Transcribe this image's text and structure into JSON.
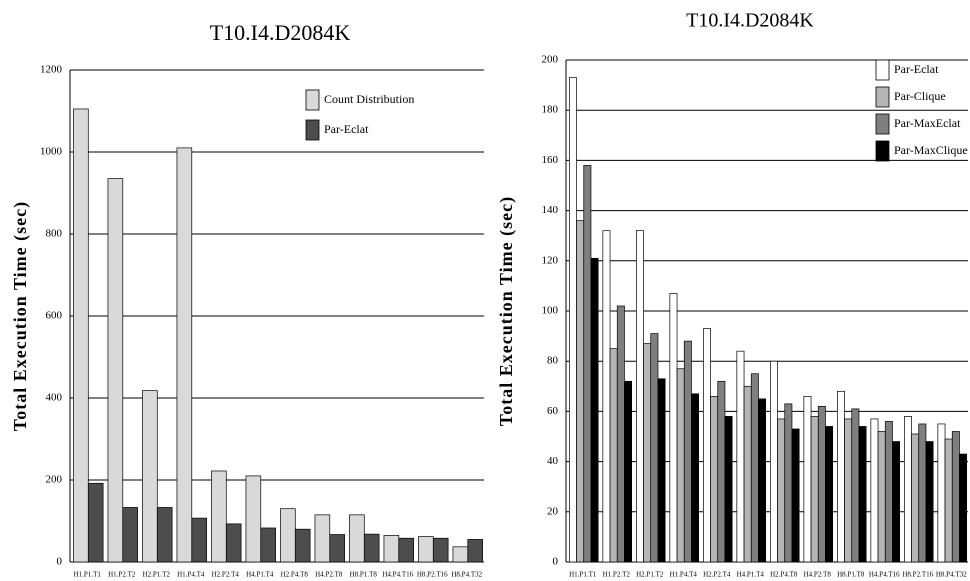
{
  "chart_data": [
    {
      "type": "bar",
      "title": "T10.I4.D2084K",
      "y_label": "Total Execution Time (sec)",
      "categories": [
        "H1.P1.T1",
        "H1.P2.T2",
        "H2.P1.T2",
        "H1.P4.T4",
        "H2.P2.T4",
        "H4.P1.T4",
        "H2.P4.T8",
        "H4.P2.T8",
        "H8.P1.T8",
        "H4.P4.T16",
        "H8.P2.T16",
        "H8.P4.T32"
      ],
      "series": [
        {
          "name": "Count Distribution",
          "color": "#d9d9d9",
          "values": [
            1105,
            935,
            418,
            1010,
            222,
            210,
            130,
            115,
            115,
            65,
            62,
            37
          ]
        },
        {
          "name": "Par-Eclat",
          "color": "#4d4d4d",
          "values": [
            192,
            133,
            133,
            107,
            93,
            83,
            80,
            67,
            68,
            58,
            58,
            55
          ]
        }
      ],
      "ylim": [
        0,
        1200
      ],
      "yticks": [
        0,
        200,
        400,
        600,
        800,
        1000,
        1200
      ],
      "grid": true
    },
    {
      "type": "bar",
      "title": "T10.I4.D2084K",
      "y_label": "Total Execution Time (sec)",
      "categories": [
        "H1.P1.T1",
        "H1.P2.T2",
        "H2.P1.T2",
        "H1.P4.T4",
        "H2.P2.T4",
        "H4.P1.T4",
        "H2.P4.T8",
        "H4.P2.T8",
        "H8.P1.T8",
        "H4.P4.T16",
        "H8.P2.T16",
        "H8.P4.T32"
      ],
      "series": [
        {
          "name": "Par-Eclat",
          "color": "#ffffff",
          "values": [
            193,
            132,
            132,
            107,
            93,
            84,
            80,
            66,
            68,
            57,
            58,
            55
          ]
        },
        {
          "name": "Par-Clique",
          "color": "#b5b5b5",
          "values": [
            136,
            85,
            87,
            77,
            66,
            70,
            57,
            58,
            57,
            52,
            51,
            49
          ]
        },
        {
          "name": "Par-MaxEclat",
          "color": "#7f7f7f",
          "values": [
            158,
            102,
            91,
            88,
            72,
            75,
            63,
            62,
            61,
            56,
            55,
            52
          ]
        },
        {
          "name": "Par-MaxClique",
          "color": "#000000",
          "values": [
            121,
            72,
            73,
            67,
            58,
            65,
            53,
            54,
            54,
            48,
            48,
            43
          ]
        }
      ],
      "ylim": [
        0,
        200
      ],
      "yticks": [
        0,
        20,
        40,
        60,
        80,
        100,
        120,
        140,
        160,
        180,
        200
      ],
      "grid": true
    }
  ]
}
